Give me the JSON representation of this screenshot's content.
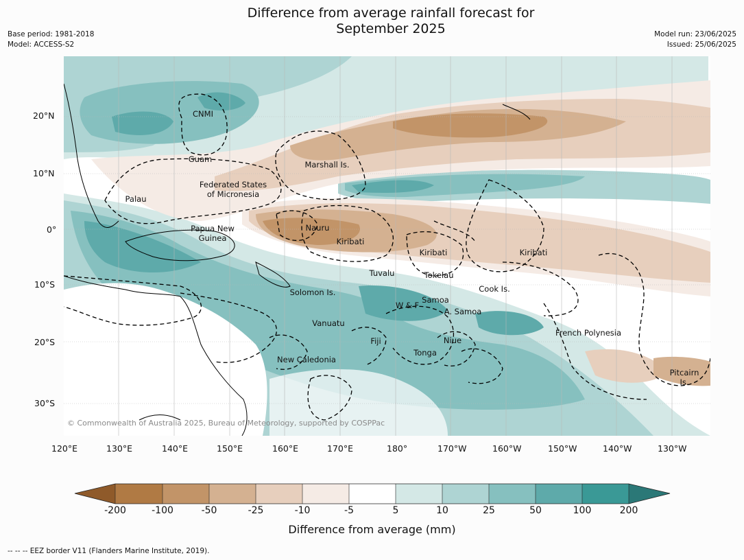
{
  "title_line1": "Difference from average rainfall forecast for",
  "title_line2": "September 2025",
  "base_period": "Base period: 1981-2018",
  "model": "Model: ACCESS-S2",
  "model_run": "Model run: 23/06/2025",
  "issued": "Issued: 25/06/2025",
  "copyright": "© Commonwealth of Australia 2025, Bureau of Meteorology, supported by COSPPac",
  "lat_ticks": [
    "20°N",
    "10°N",
    "0°",
    "10°S",
    "20°S",
    "30°S"
  ],
  "lon_ticks": [
    "120°E",
    "130°E",
    "140°E",
    "150°E",
    "160°E",
    "170°E",
    "180°",
    "170°W",
    "160°W",
    "150°W",
    "140°W",
    "130°W"
  ],
  "regions": {
    "cnmi": "CNMI",
    "guam": "Guam",
    "marshall": "Marshall Is.",
    "fsm1": "Federated States",
    "fsm2": "of Micronesia",
    "palau": "Palau",
    "png1": "Papua New",
    "png2": "Guinea",
    "nauru": "Nauru",
    "kiribati_w": "Kiribati",
    "kiribati_c": "Kiribati",
    "kiribati_e": "Kiribati",
    "tuvalu": "Tuvalu",
    "tokelau": "Tokelau",
    "cook": "Cook Is.",
    "solomon": "Solomon Is.",
    "samoa": "Samoa",
    "wf": "W & F",
    "asamoa": "A. Samoa",
    "vanuatu": "Vanuatu",
    "fiji": "Fiji",
    "niue": "Niue",
    "tonga": "Tonga",
    "frpoly": "French Polynesia",
    "newcal": "New Caledonia",
    "pitcairn1": "Pitcairn",
    "pitcairn2": "Is."
  },
  "colorbar": {
    "labels": [
      "-200",
      "-100",
      "-50",
      "-25",
      "-10",
      "-5",
      "5",
      "10",
      "25",
      "50",
      "100",
      "200"
    ],
    "colors": [
      "#8f5a2a",
      "#b07a44",
      "#c29468",
      "#d4b191",
      "#e7cfbd",
      "#f5ebe5",
      "#ffffff",
      "#d4e8e6",
      "#aed4d3",
      "#86c0bf",
      "#5eaaaa",
      "#3a9996",
      "#2b7877"
    ],
    "axis_label": "Difference from average (mm)"
  },
  "footnote": "--  --  -- EEZ border V11 (Flanders Marine Institute, 2019)."
}
